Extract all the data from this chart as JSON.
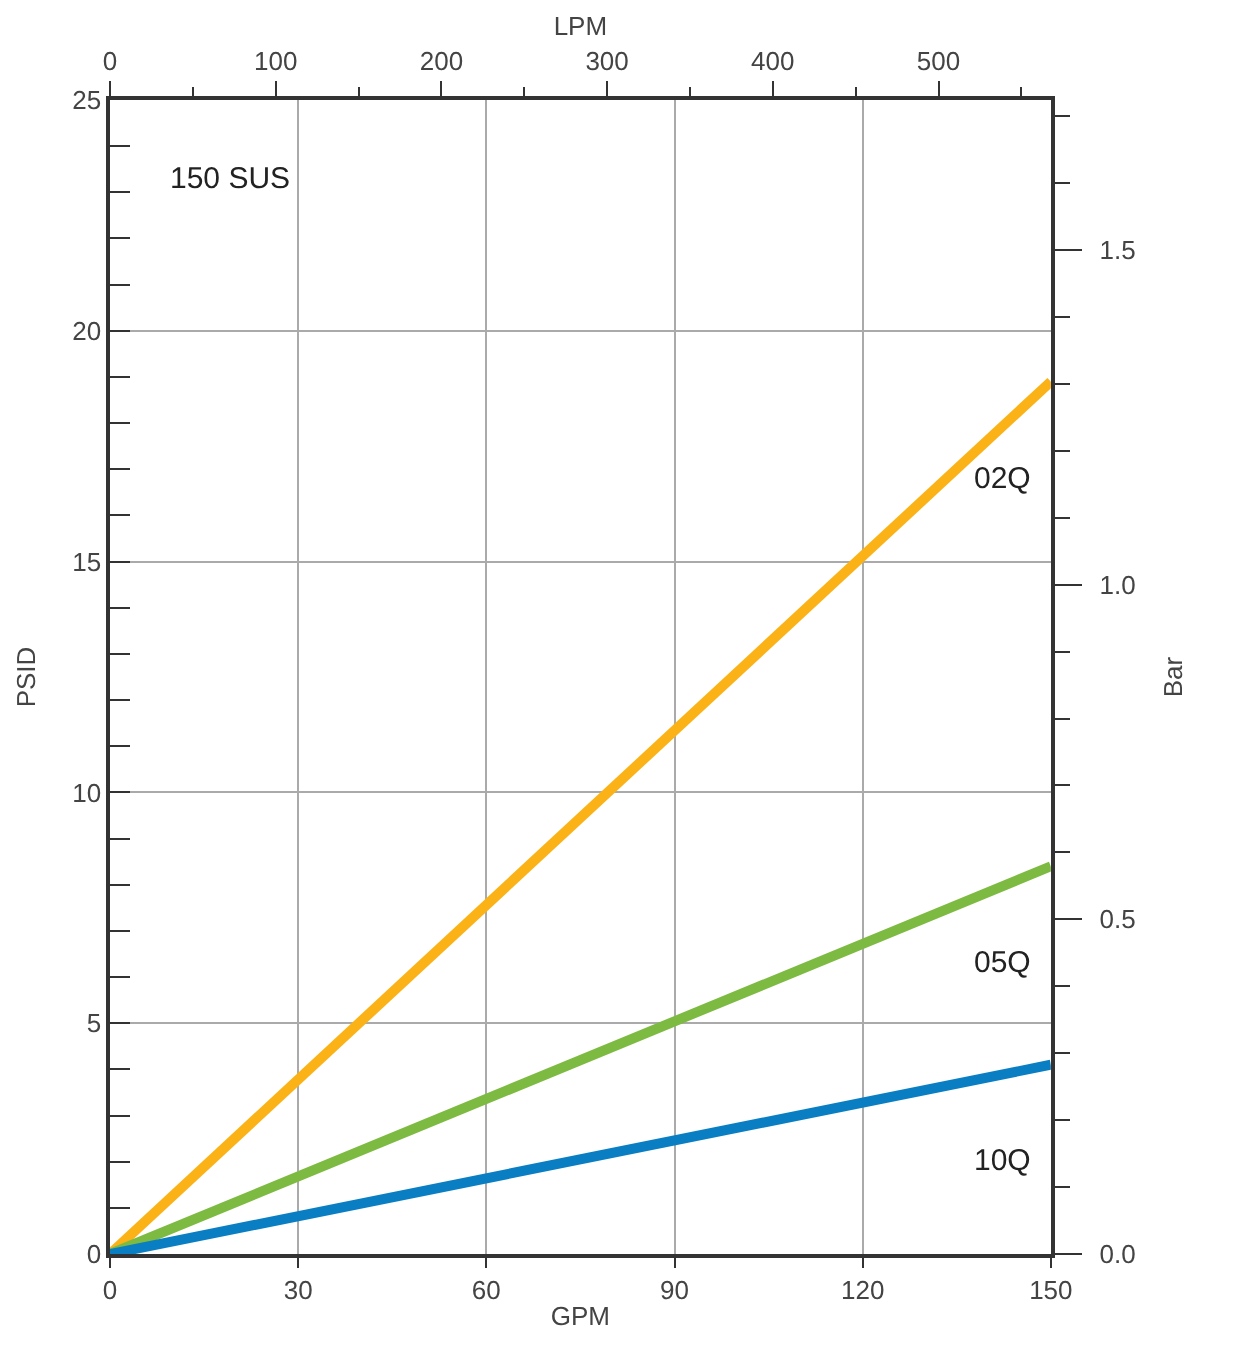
{
  "chart_data": {
    "type": "line",
    "x": [
      0,
      150
    ],
    "series": [
      {
        "name": "02Q",
        "color": "#fbb217",
        "values": [
          0,
          18.9
        ]
      },
      {
        "name": "05Q",
        "color": "#7dba42",
        "values": [
          0,
          8.4
        ]
      },
      {
        "name": "10Q",
        "color": "#0a7ec2",
        "values": [
          0,
          4.1
        ]
      }
    ],
    "xlabel": "GPM",
    "ylabel": "PSID",
    "x2label": "LPM",
    "y2label": "Bar",
    "annotations": [
      "150 SUS"
    ],
    "xlim": [
      0,
      150
    ],
    "xticks": [
      0,
      30,
      60,
      90,
      120,
      150
    ],
    "ylim": [
      0,
      25
    ],
    "yticks": [
      0,
      {
        "value": 1,
        "label": null
      },
      {
        "value": 2,
        "label": null
      },
      {
        "value": 3,
        "label": null
      },
      {
        "value": 4,
        "label": null
      },
      5,
      {
        "value": 6,
        "label": null
      },
      {
        "value": 7,
        "label": null
      },
      {
        "value": 8,
        "label": null
      },
      {
        "value": 9,
        "label": null
      },
      10,
      {
        "value": 11,
        "label": null
      },
      {
        "value": 12,
        "label": null
      },
      {
        "value": 13,
        "label": null
      },
      {
        "value": 14,
        "label": null
      },
      15,
      {
        "value": 16,
        "label": null
      },
      {
        "value": 17,
        "label": null
      },
      {
        "value": 18,
        "label": null
      },
      {
        "value": 19,
        "label": null
      },
      20,
      {
        "value": 21,
        "label": null
      },
      {
        "value": 22,
        "label": null
      },
      {
        "value": 23,
        "label": null
      },
      {
        "value": 24,
        "label": null
      },
      25
    ],
    "x2lim": [
      0,
      567.8
    ],
    "x2ticks": [
      0,
      {
        "value": 50,
        "label": null
      },
      100,
      {
        "value": 150,
        "label": null
      },
      200,
      {
        "value": 250,
        "label": null
      },
      300,
      {
        "value": 350,
        "label": null
      },
      400,
      {
        "value": 450,
        "label": null
      },
      500,
      {
        "value": 550,
        "label": null
      }
    ],
    "y2lim": [
      0,
      1.724
    ],
    "y2ticks": [
      {
        "value": 0,
        "label": "0.0"
      },
      {
        "value": 0.1,
        "label": null
      },
      {
        "value": 0.2,
        "label": null
      },
      {
        "value": 0.3,
        "label": null
      },
      {
        "value": 0.4,
        "label": null
      },
      0.5,
      {
        "value": 0.6,
        "label": null
      },
      {
        "value": 0.7,
        "label": null
      },
      {
        "value": 0.8,
        "label": null
      },
      {
        "value": 0.9,
        "label": null
      },
      {
        "value": 1,
        "label": "1.0"
      },
      {
        "value": 1.1,
        "label": null
      },
      {
        "value": 1.2,
        "label": null
      },
      {
        "value": 1.3,
        "label": null
      },
      {
        "value": 1.4,
        "label": null
      },
      1.5,
      {
        "value": 1.6,
        "label": null
      },
      {
        "value": 1.7,
        "label": null
      }
    ],
    "grid": true,
    "legend": false,
    "marker": "none",
    "line_style": "solid"
  }
}
